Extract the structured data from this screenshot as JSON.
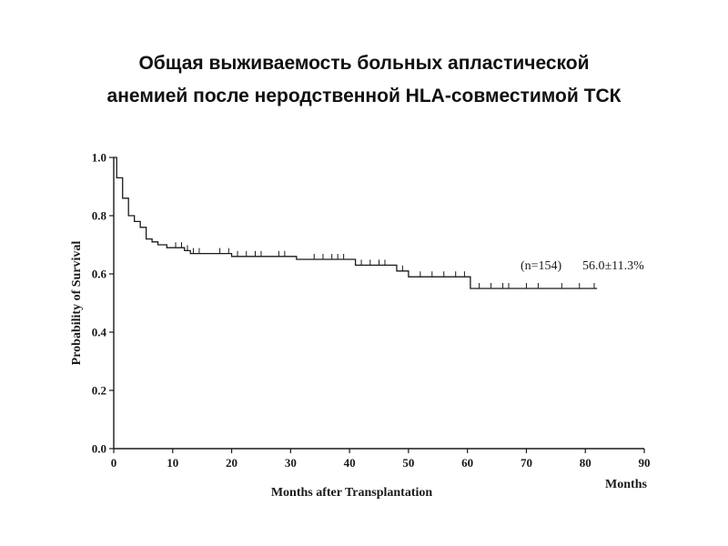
{
  "title_lines": [
    "Общая выживаемость больных апластической",
    "анемией после неродственной HLA-совместимой ТСК"
  ],
  "chart_data": {
    "type": "line",
    "xlabel": "Months after Transplantation",
    "xunit_label": "Months",
    "ylabel": "Probability of Survival",
    "xlim": [
      0,
      90
    ],
    "ylim": [
      0,
      1.0
    ],
    "x_ticks": [
      0,
      10,
      20,
      30,
      40,
      50,
      60,
      70,
      80,
      90
    ],
    "y_ticks": [
      "0.0",
      "0.2",
      "0.4",
      "0.6",
      "0.8",
      "1.0"
    ],
    "series": [
      {
        "step": [
          [
            0,
            1.0
          ],
          [
            0.5,
            0.93
          ],
          [
            1.5,
            0.86
          ],
          [
            2.5,
            0.8
          ],
          [
            3.5,
            0.78
          ],
          [
            4.5,
            0.76
          ],
          [
            5.5,
            0.72
          ],
          [
            6.5,
            0.71
          ],
          [
            7.5,
            0.7
          ],
          [
            9,
            0.69
          ],
          [
            12,
            0.68
          ],
          [
            13,
            0.67
          ],
          [
            20,
            0.66
          ],
          [
            31,
            0.65
          ],
          [
            35,
            0.65
          ],
          [
            41,
            0.63
          ],
          [
            48,
            0.61
          ],
          [
            50,
            0.59
          ],
          [
            60.5,
            0.55
          ],
          [
            82,
            0.55
          ]
        ],
        "censored": [
          10.5,
          11.5,
          12.5,
          13.5,
          14.5,
          18,
          19.5,
          21,
          22.5,
          24,
          25,
          28,
          29,
          34,
          35.5,
          37,
          38,
          39,
          42,
          43.5,
          45,
          46,
          49,
          52,
          54,
          56,
          58,
          59.5,
          62,
          64,
          66,
          67,
          70,
          72,
          76,
          79,
          81.5
        ]
      }
    ],
    "annotations": [
      "(n=154)",
      "56.0±11.3%"
    ]
  }
}
